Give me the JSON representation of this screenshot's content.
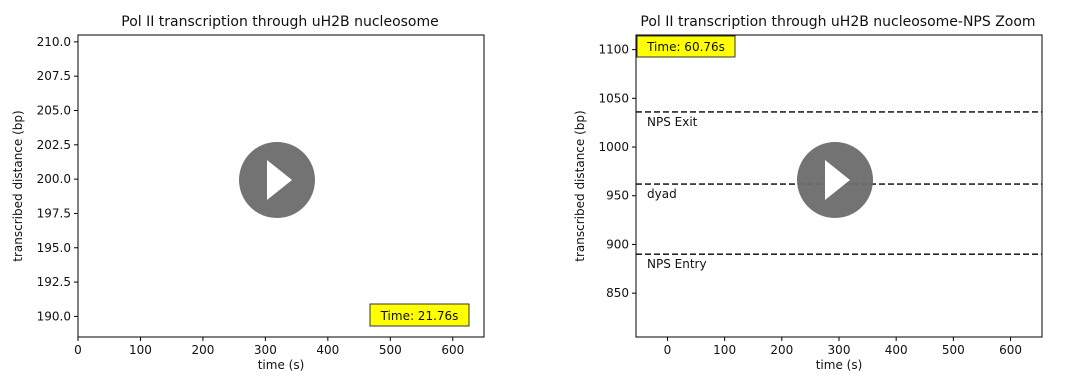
{
  "chart_data": [
    {
      "type": "line",
      "title": "Pol II transcription through uH2B nucleosome",
      "xlabel": "time (s)",
      "ylabel": "transcribed distance (bp)",
      "xlim": [
        0,
        650
      ],
      "ylim": [
        188.5,
        210.5
      ],
      "x_ticks": [
        "0",
        "100",
        "200",
        "300",
        "400",
        "500",
        "600"
      ],
      "y_ticks": [
        "190.0",
        "192.5",
        "195.0",
        "197.5",
        "200.0",
        "202.5",
        "205.0",
        "207.5",
        "210.0"
      ],
      "series": [],
      "reference_lines": [],
      "time_label": "Time: 21.76s",
      "time_box_position": "bottom-right",
      "time_box_color": "#ffff00",
      "play_button": true
    },
    {
      "type": "line",
      "title": "Pol II transcription through uH2B nucleosome-NPS Zoom",
      "xlabel": "time (s)",
      "ylabel": "transcribed distance (bp)",
      "xlim": [
        -55,
        655
      ],
      "ylim": [
        805,
        1115
      ],
      "x_ticks": [
        "0",
        "100",
        "200",
        "300",
        "400",
        "500",
        "600"
      ],
      "y_ticks": [
        "850",
        "900",
        "950",
        "1000",
        "1050",
        "1100"
      ],
      "series": [],
      "reference_lines": [
        {
          "label": "NPS Exit",
          "y": 1036,
          "style": "dashed"
        },
        {
          "label": "dyad",
          "y": 962,
          "style": "dashed"
        },
        {
          "label": "NPS Entry",
          "y": 890,
          "style": "dashed"
        }
      ],
      "time_label": "Time: 60.76s",
      "time_box_position": "top-left",
      "time_box_color": "#ffff00",
      "play_button": true
    }
  ],
  "colors": {
    "axis": "#000000",
    "play_button": "#6b6b6b",
    "play_glyph": "#ffffff"
  },
  "icons": {
    "play": "play-icon"
  }
}
